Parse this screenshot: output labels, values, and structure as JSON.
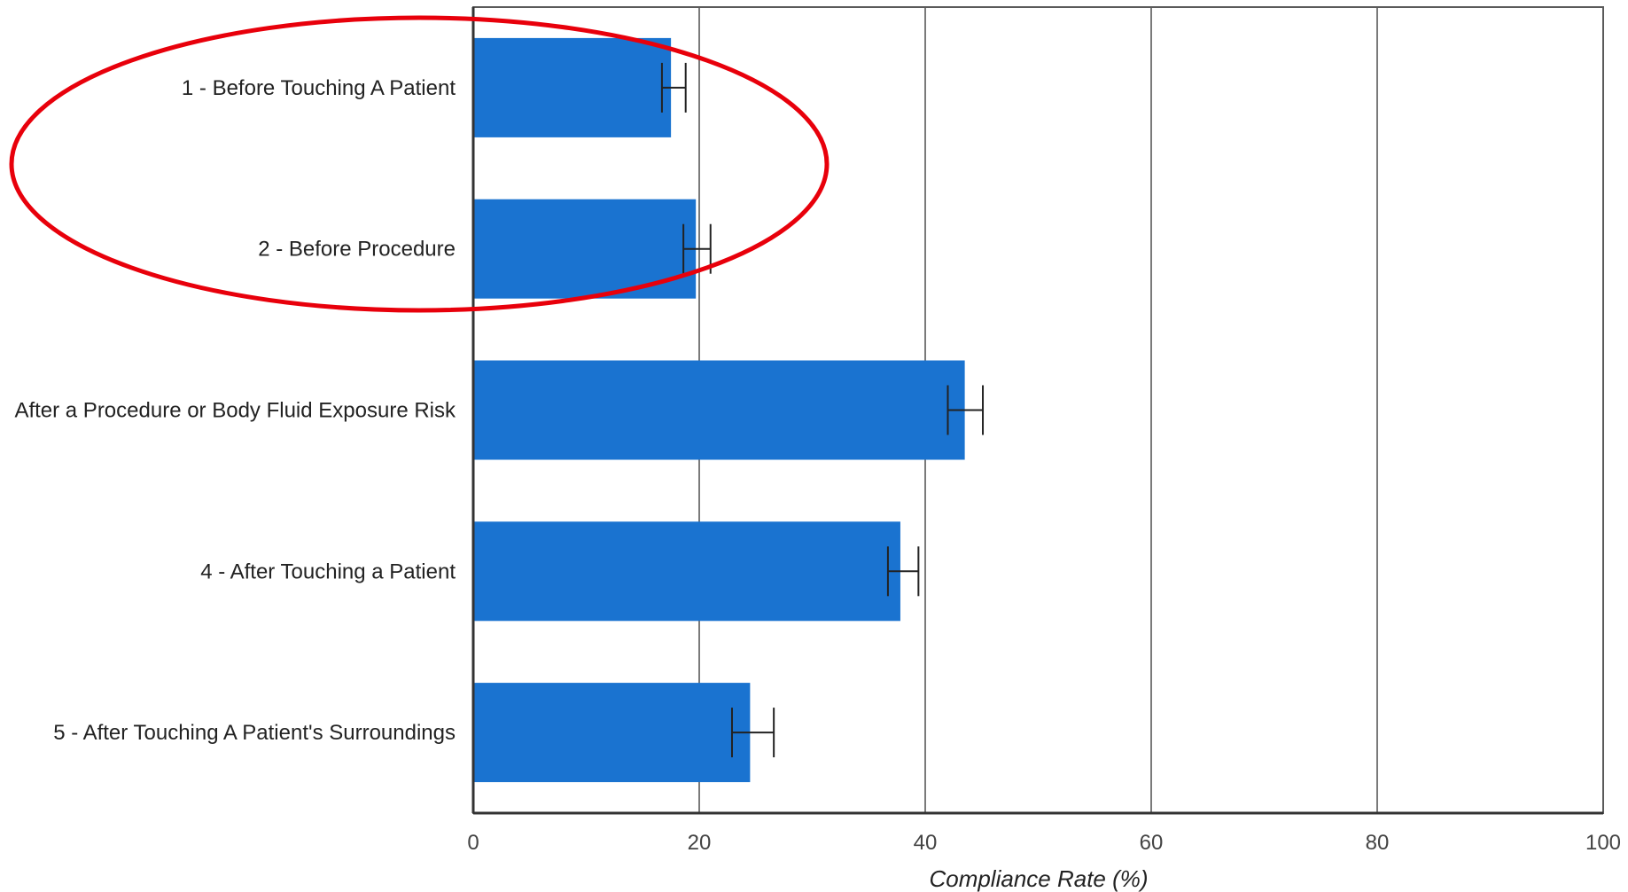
{
  "chart_data": {
    "type": "bar",
    "orientation": "horizontal",
    "categories": [
      "1 - Before Touching A Patient",
      "2 - Before Procedure",
      "After a Procedure or Body Fluid Exposure Risk",
      "4 - After Touching a Patient",
      "5 - After Touching A Patient's Surroundings"
    ],
    "values": [
      17.5,
      19.7,
      43.5,
      37.8,
      24.5
    ],
    "error_low": [
      16.7,
      18.6,
      42.0,
      36.7,
      22.9
    ],
    "error_high": [
      18.8,
      21.0,
      45.1,
      39.4,
      26.6
    ],
    "xlabel": "Compliance Rate (%)",
    "ylabel": "",
    "xlim": [
      0,
      100
    ],
    "xticks": [
      "0",
      "20",
      "40",
      "60",
      "80",
      "100"
    ],
    "grid": true,
    "bar_color": "#1a73d0",
    "annotation": {
      "shape": "ellipse",
      "color": "#e8000b",
      "encloses": [
        "1 - Before Touching A Patient",
        "2 - Before Procedure"
      ]
    }
  }
}
